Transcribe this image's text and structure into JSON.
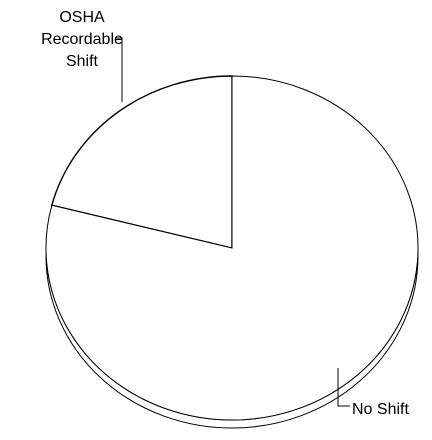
{
  "chart_data": {
    "type": "pie",
    "style": "3d",
    "categories": [
      "OSHA Recordable Shift",
      "No Shift"
    ],
    "values": [
      21,
      79
    ],
    "labels": [
      [
        "OSHA",
        "Recordable",
        "Shift"
      ],
      [
        "No Shift"
      ]
    ],
    "colors": {
      "fill": "#ffffff",
      "stroke": "#000000",
      "background": "#ffffff"
    },
    "legend": "none"
  }
}
